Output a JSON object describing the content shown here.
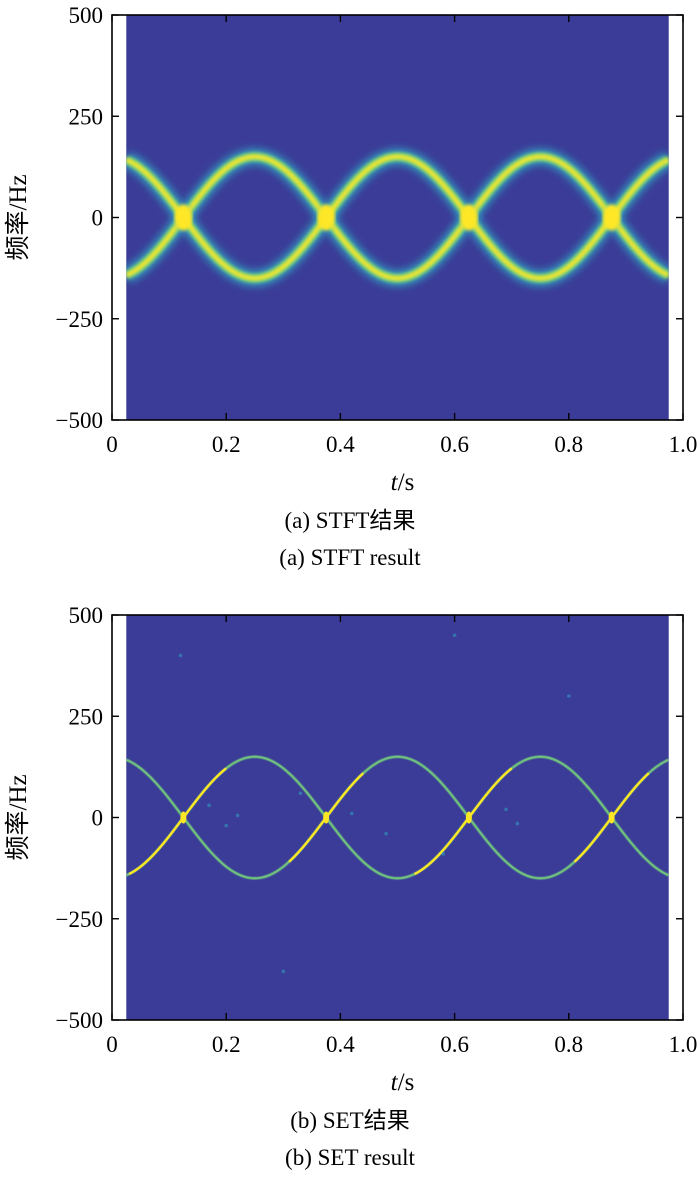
{
  "chart_data": [
    {
      "type": "heatmap",
      "panel": "a",
      "xlabel_var": "t",
      "xlabel_unit": "/s",
      "ylabel": "频率/Hz",
      "xlim": [
        0,
        1.0
      ],
      "ylim": [
        -500,
        500
      ],
      "x_ticks": [
        "0",
        "0.2",
        "0.4",
        "0.6",
        "0.8",
        "1.0"
      ],
      "y_ticks": [
        "500",
        "250",
        "0",
        "−250",
        "−500"
      ],
      "x_tick_values": [
        0,
        0.2,
        0.4,
        0.6,
        0.8,
        1.0
      ],
      "y_tick_values": [
        500,
        250,
        0,
        -250,
        -500
      ],
      "data_extent_x": [
        0.025,
        0.975
      ],
      "signal": {
        "frequency_amplitude_hz": 150,
        "modulation_period_s": 0.5,
        "components": [
          "150*sin(2*pi*2*t - pi/2 phase family)",
          "mirror component"
        ]
      },
      "background_color": "#3b3c97",
      "ridge_colors": [
        "#2fb5c9",
        "#74d07c",
        "#fde725"
      ],
      "caption_cn": "(a) STFT结果",
      "caption_en": "(a) STFT result"
    },
    {
      "type": "heatmap",
      "panel": "b",
      "xlabel_var": "t",
      "xlabel_unit": "/s",
      "ylabel": "频率/Hz",
      "xlim": [
        0,
        1.0
      ],
      "ylim": [
        -500,
        500
      ],
      "x_ticks": [
        "0",
        "0.2",
        "0.4",
        "0.6",
        "0.8",
        "1.0"
      ],
      "y_ticks": [
        "500",
        "250",
        "0",
        "−250",
        "−500"
      ],
      "x_tick_values": [
        0,
        0.2,
        0.4,
        0.6,
        0.8,
        1.0
      ],
      "y_tick_values": [
        500,
        250,
        0,
        -250,
        -500
      ],
      "data_extent_x": [
        0.025,
        0.975
      ],
      "signal": {
        "frequency_amplitude_hz": 150,
        "modulation_period_s": 0.5
      },
      "background_color": "#3b3c97",
      "ridge_colors": [
        "#2fb5c9",
        "#74d07c",
        "#fde725"
      ],
      "caption_cn": "(b) SET结果",
      "caption_en": "(b) SET result"
    }
  ]
}
